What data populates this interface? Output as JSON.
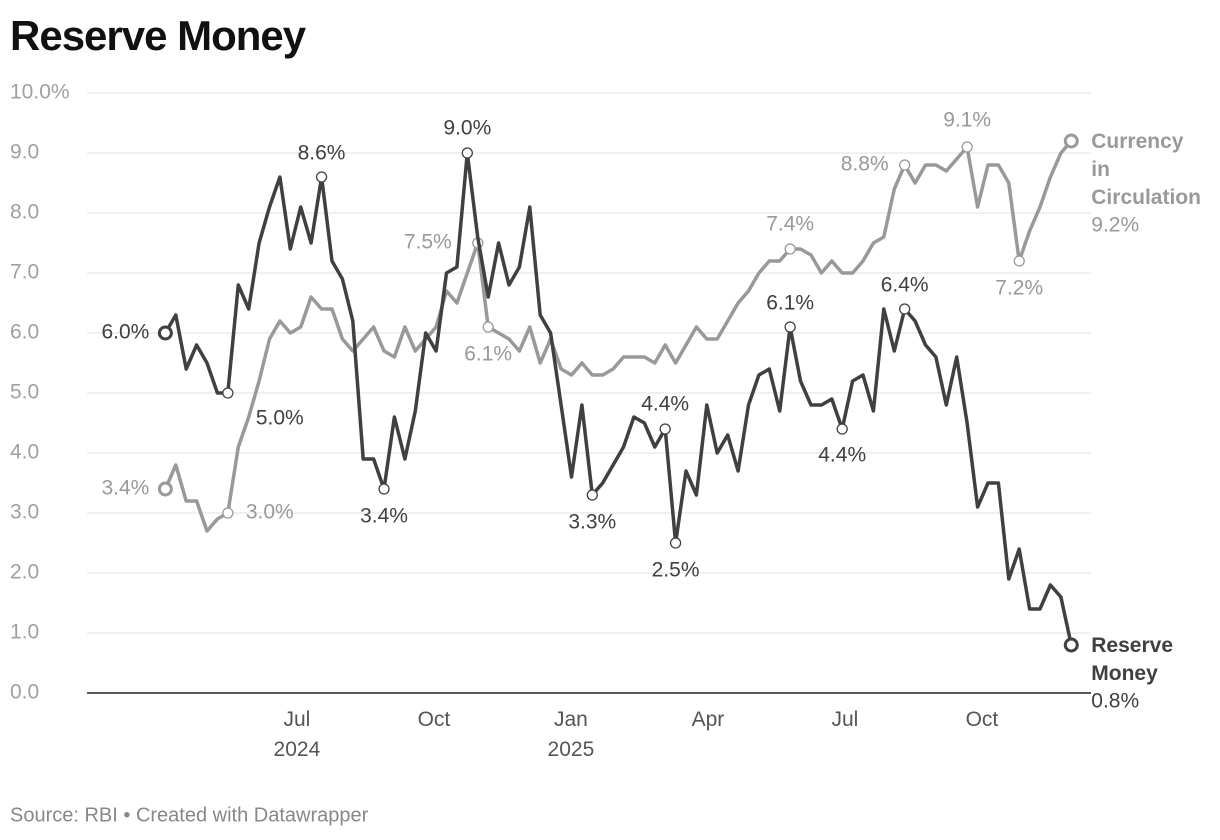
{
  "chart_data": {
    "type": "line",
    "title": "Reserve Money",
    "source": "Source: RBI • Created with Datawrapper",
    "x": [
      2024.26,
      2024.279,
      2024.298,
      2024.317,
      2024.336,
      2024.355,
      2024.374,
      2024.393,
      2024.412,
      2024.431,
      2024.45,
      2024.469,
      2024.488,
      2024.507,
      2024.526,
      2024.545,
      2024.564,
      2024.583,
      2024.602,
      2024.621,
      2024.64,
      2024.659,
      2024.678,
      2024.697,
      2024.716,
      2024.735,
      2024.754,
      2024.773,
      2024.792,
      2024.811,
      2024.83,
      2024.849,
      2024.868,
      2024.887,
      2024.906,
      2024.925,
      2024.944,
      2024.963,
      2024.982,
      2025.001,
      2025.02,
      2025.039,
      2025.058,
      2025.077,
      2025.096,
      2025.115,
      2025.134,
      2025.153,
      2025.172,
      2025.191,
      2025.21,
      2025.229,
      2025.248,
      2025.267,
      2025.286,
      2025.305,
      2025.324,
      2025.343,
      2025.362,
      2025.381,
      2025.4,
      2025.419,
      2025.438,
      2025.457,
      2025.476,
      2025.495,
      2025.514,
      2025.533,
      2025.552,
      2025.571,
      2025.59,
      2025.609,
      2025.628,
      2025.647,
      2025.666,
      2025.685,
      2025.704,
      2025.723,
      2025.742,
      2025.761,
      2025.78,
      2025.799,
      2025.818,
      2025.837,
      2025.856,
      2025.875,
      2025.894,
      2025.913
    ],
    "xlim": [
      2024.117,
      2025.949
    ],
    "xticks": [
      {
        "value": 2024.5,
        "label": "Jul 2024"
      },
      {
        "value": 2024.75,
        "label": "Oct"
      },
      {
        "value": 2025.0,
        "label": "Jan 2025"
      },
      {
        "value": 2025.25,
        "label": "Apr"
      },
      {
        "value": 2025.5,
        "label": "Jul"
      },
      {
        "value": 2025.75,
        "label": "Oct"
      }
    ],
    "ylim": [
      0,
      10
    ],
    "yticks": [
      {
        "value": 0,
        "label": "0.0"
      },
      {
        "value": 1,
        "label": "1.0"
      },
      {
        "value": 2,
        "label": "2.0"
      },
      {
        "value": 3,
        "label": "3.0"
      },
      {
        "value": 4,
        "label": "4.0"
      },
      {
        "value": 5,
        "label": "5.0"
      },
      {
        "value": 6,
        "label": "6.0"
      },
      {
        "value": 7,
        "label": "7.0"
      },
      {
        "value": 8,
        "label": "8.0"
      },
      {
        "value": 9,
        "label": "9.0"
      },
      {
        "value": 10,
        "label": "10.0%"
      }
    ],
    "grid": true,
    "series": [
      {
        "name": "Currency in Circulation",
        "color": "#999999",
        "values": [
          3.4,
          3.8,
          3.2,
          3.2,
          2.7,
          2.9,
          3.0,
          4.1,
          4.6,
          5.2,
          5.9,
          6.2,
          6.0,
          6.1,
          6.6,
          6.4,
          6.4,
          5.9,
          5.7,
          5.9,
          6.1,
          5.7,
          5.6,
          6.1,
          5.7,
          5.9,
          6.1,
          6.7,
          6.5,
          7.0,
          7.5,
          6.1,
          6.0,
          5.9,
          5.7,
          6.1,
          5.5,
          5.9,
          5.4,
          5.3,
          5.5,
          5.3,
          5.3,
          5.4,
          5.6,
          5.6,
          5.6,
          5.5,
          5.8,
          5.5,
          5.8,
          6.1,
          5.9,
          5.9,
          6.2,
          6.5,
          6.7,
          7.0,
          7.2,
          7.2,
          7.4,
          7.4,
          7.3,
          7.0,
          7.2,
          7.0,
          7.0,
          7.2,
          7.5,
          7.6,
          8.4,
          8.8,
          8.5,
          8.8,
          8.8,
          8.7,
          8.9,
          9.1,
          8.1,
          8.8,
          8.8,
          8.5,
          7.2,
          7.7,
          8.1,
          8.6,
          9.0,
          9.2
        ],
        "value_labels": [
          "3.4%",
          null,
          null,
          null,
          null,
          null,
          "3.0%",
          null,
          null,
          null,
          null,
          null,
          null,
          null,
          null,
          null,
          null,
          null,
          null,
          null,
          null,
          null,
          null,
          null,
          null,
          null,
          null,
          null,
          null,
          null,
          "7.5%",
          "6.1%",
          null,
          null,
          null,
          null,
          null,
          null,
          null,
          null,
          null,
          null,
          null,
          null,
          null,
          null,
          null,
          null,
          null,
          null,
          null,
          null,
          null,
          null,
          null,
          null,
          null,
          null,
          null,
          null,
          "7.4%",
          null,
          null,
          null,
          null,
          null,
          null,
          null,
          null,
          null,
          null,
          "8.8%",
          null,
          null,
          null,
          null,
          null,
          "9.1%",
          null,
          null,
          null,
          null,
          "7.2%",
          null,
          null,
          null,
          null,
          "9.2%"
        ]
      },
      {
        "name": "Reserve Money",
        "color": "#404040",
        "values": [
          6.0,
          6.3,
          5.4,
          5.8,
          5.5,
          5.0,
          5.0,
          6.8,
          6.4,
          7.5,
          8.1,
          8.6,
          7.4,
          8.1,
          7.5,
          8.6,
          7.2,
          6.9,
          6.2,
          3.9,
          3.9,
          3.4,
          4.6,
          3.9,
          4.7,
          6.0,
          5.7,
          7.0,
          7.1,
          9.0,
          7.6,
          6.6,
          7.5,
          6.8,
          7.1,
          8.1,
          6.3,
          6.0,
          4.8,
          3.6,
          4.8,
          3.3,
          3.5,
          3.8,
          4.1,
          4.6,
          4.5,
          4.1,
          4.4,
          2.5,
          3.7,
          3.3,
          4.8,
          4.0,
          4.3,
          3.7,
          4.8,
          5.3,
          5.4,
          4.7,
          6.1,
          5.2,
          4.8,
          4.8,
          4.9,
          4.4,
          5.2,
          5.3,
          4.7,
          6.4,
          5.7,
          6.4,
          6.2,
          5.8,
          5.6,
          4.8,
          5.6,
          4.5,
          3.1,
          3.5,
          3.5,
          1.9,
          2.4,
          1.4,
          1.4,
          1.8,
          1.6,
          0.8
        ],
        "value_labels": [
          "6.0%",
          null,
          null,
          null,
          null,
          null,
          "5.0%",
          null,
          null,
          null,
          null,
          null,
          null,
          null,
          null,
          "8.6%",
          null,
          null,
          null,
          null,
          null,
          "3.4%",
          null,
          null,
          null,
          null,
          null,
          null,
          null,
          "9.0%",
          null,
          null,
          null,
          null,
          null,
          null,
          null,
          null,
          null,
          null,
          null,
          "3.3%",
          null,
          null,
          null,
          null,
          null,
          null,
          "4.4%",
          "2.5%",
          null,
          null,
          null,
          null,
          null,
          null,
          null,
          null,
          null,
          null,
          "6.1%",
          null,
          null,
          null,
          null,
          "4.4%",
          null,
          null,
          null,
          null,
          null,
          "6.4%",
          null,
          null,
          null,
          null,
          null,
          null,
          null,
          null,
          null,
          null,
          null,
          null,
          null,
          null,
          null,
          "0.8%"
        ]
      }
    ]
  }
}
